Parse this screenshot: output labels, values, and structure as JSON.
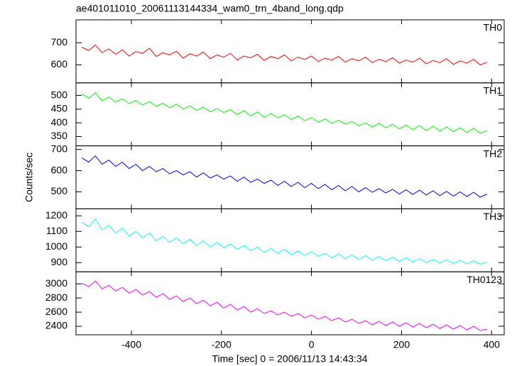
{
  "chart_data": {
    "type": "line",
    "title": "ae401011010_20061113144334_wam0_trn_4band_long.qdp",
    "xlabel": "Time [sec] 0 = 2006/11/13 14:43:34",
    "ylabel": "Counts/sec",
    "x": [
      -510,
      -495,
      -480,
      -465,
      -450,
      -435,
      -420,
      -405,
      -390,
      -375,
      -360,
      -345,
      -330,
      -315,
      -300,
      -285,
      -270,
      -255,
      -240,
      -225,
      -210,
      -195,
      -180,
      -165,
      -150,
      -135,
      -120,
      -105,
      -90,
      -75,
      -60,
      -45,
      -30,
      -15,
      0,
      15,
      30,
      45,
      60,
      75,
      90,
      105,
      120,
      135,
      150,
      165,
      180,
      195,
      210,
      225,
      240,
      255,
      270,
      285,
      300,
      315,
      330,
      345,
      360,
      375,
      390
    ],
    "xlim": [
      -523,
      428
    ],
    "xticks": [
      -400,
      -200,
      0,
      200,
      400
    ],
    "panels": [
      {
        "name": "TH0",
        "color": "#ff0000",
        "ylim": [
          519,
          803
        ],
        "yticks": [
          600,
          700
        ],
        "values": [
          680,
          665,
          690,
          655,
          672,
          648,
          668,
          640,
          660,
          652,
          675,
          638,
          655,
          645,
          662,
          630,
          650,
          640,
          658,
          628,
          645,
          635,
          652,
          622,
          640,
          632,
          648,
          620,
          638,
          628,
          645,
          618,
          635,
          625,
          640,
          615,
          630,
          622,
          638,
          612,
          628,
          618,
          635,
          610,
          625,
          615,
          632,
          608,
          622,
          612,
          630,
          605,
          620,
          610,
          628,
          602,
          618,
          608,
          625,
          600,
          612
        ]
      },
      {
        "name": "TH1",
        "color": "#00ff00",
        "ylim": [
          316,
          546
        ],
        "yticks": [
          350,
          400,
          450,
          500
        ],
        "values": [
          505,
          490,
          510,
          480,
          495,
          475,
          488,
          470,
          482,
          465,
          478,
          460,
          472,
          455,
          468,
          450,
          462,
          445,
          458,
          440,
          452,
          438,
          448,
          430,
          445,
          425,
          440,
          420,
          435,
          418,
          430,
          412,
          425,
          408,
          420,
          402,
          415,
          398,
          410,
          395,
          405,
          390,
          400,
          385,
          398,
          382,
          395,
          378,
          392,
          375,
          390,
          372,
          388,
          370,
          385,
          368,
          382,
          365,
          380,
          362,
          372
        ]
      },
      {
        "name": "TH2",
        "color": "#0000ff",
        "ylim": [
          420,
          717
        ],
        "yticks": [
          500,
          600,
          700
        ],
        "values": [
          660,
          640,
          670,
          630,
          650,
          620,
          640,
          610,
          630,
          600,
          620,
          595,
          610,
          585,
          600,
          580,
          595,
          570,
          590,
          565,
          580,
          560,
          575,
          550,
          570,
          545,
          560,
          540,
          555,
          530,
          550,
          525,
          545,
          520,
          540,
          515,
          535,
          510,
          530,
          505,
          525,
          500,
          520,
          498,
          515,
          495,
          512,
          490,
          510,
          488,
          508,
          485,
          505,
          482,
          502,
          480,
          500,
          478,
          498,
          475,
          490
        ]
      },
      {
        "name": "TH3",
        "color": "#00ffff",
        "ylim": [
          841,
          1245
        ],
        "yticks": [
          900,
          1000,
          1100,
          1200
        ],
        "values": [
          1160,
          1130,
          1180,
          1110,
          1140,
          1090,
          1120,
          1070,
          1100,
          1060,
          1090,
          1040,
          1070,
          1030,
          1060,
          1020,
          1050,
          1010,
          1040,
          1000,
          1030,
          995,
          1020,
          985,
          1010,
          975,
          1000,
          965,
          990,
          960,
          985,
          950,
          975,
          945,
          970,
          940,
          960,
          930,
          955,
          925,
          950,
          920,
          945,
          915,
          940,
          912,
          935,
          908,
          930,
          905,
          925,
          900,
          920,
          898,
          918,
          895,
          915,
          892,
          912,
          890,
          905
        ]
      },
      {
        "name": "TH0123",
        "color": "#ff00ff",
        "ylim": [
          2280,
          3170
        ],
        "yticks": [
          2400,
          2600,
          2800,
          3000
        ],
        "values": [
          3010,
          2960,
          3040,
          2930,
          2980,
          2900,
          2950,
          2870,
          2920,
          2840,
          2890,
          2810,
          2860,
          2780,
          2830,
          2750,
          2800,
          2720,
          2770,
          2690,
          2740,
          2660,
          2710,
          2630,
          2680,
          2600,
          2650,
          2580,
          2620,
          2560,
          2600,
          2540,
          2580,
          2520,
          2560,
          2500,
          2540,
          2480,
          2520,
          2460,
          2500,
          2440,
          2480,
          2420,
          2470,
          2410,
          2460,
          2400,
          2450,
          2390,
          2440,
          2380,
          2430,
          2370,
          2420,
          2360,
          2410,
          2350,
          2400,
          2340,
          2360
        ]
      }
    ]
  }
}
